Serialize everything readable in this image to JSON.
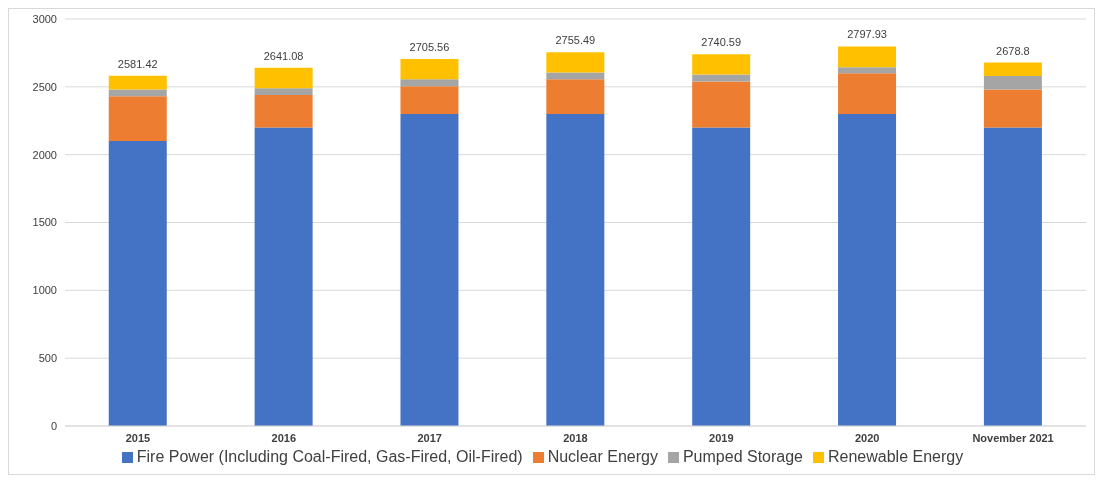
{
  "chart_data": {
    "type": "bar",
    "stacked": true,
    "categories": [
      "2015",
      "2016",
      "2017",
      "2018",
      "2019",
      "2020",
      "November 2021"
    ],
    "series": [
      {
        "name": "Fire Power (Including Coal-Fired, Gas-Fired, Oil-Fired)",
        "color": "#4472c4",
        "values": [
          2100,
          2200,
          2300,
          2300,
          2200,
          2300,
          2200
        ]
      },
      {
        "name": "Nuclear Energy",
        "color": "#ed7d31",
        "values": [
          330,
          240,
          205,
          255,
          340,
          300,
          280
        ]
      },
      {
        "name": "Pumped Storage",
        "color": "#a5a5a5",
        "values": [
          50,
          50,
          50,
          50,
          50,
          45,
          100
        ]
      },
      {
        "name": "Renewable Energy",
        "color": "#ffc000",
        "values": [
          101.42,
          151.08,
          150.56,
          150.49,
          150.59,
          152.93,
          98.8
        ]
      }
    ],
    "totals": [
      "2581.42",
      "2641.08",
      "2705.56",
      "2755.49",
      "2740.59",
      "2797.93",
      "2678.8"
    ],
    "ylim": [
      0,
      3000
    ],
    "yticks": [
      0,
      500,
      1000,
      1500,
      2000,
      2500,
      3000
    ],
    "grid": "y",
    "legend": "bottom"
  }
}
